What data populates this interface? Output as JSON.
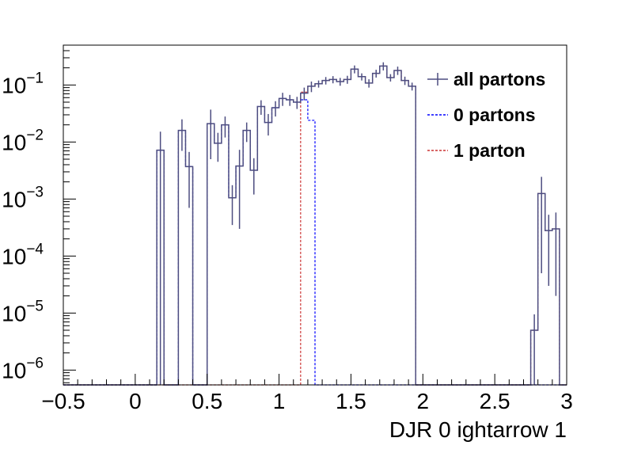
{
  "chart_data": {
    "type": "histogram",
    "xlabel": "DJR 0 ightarrow 1",
    "ylabel": "",
    "xlim": [
      -0.5,
      3.0
    ],
    "ylim": [
      5.5e-07,
      0.5
    ],
    "yscale": "log",
    "grid": false,
    "legend_position": "top-right",
    "x_ticks": [
      {
        "value": -0.5,
        "label": "−0.5"
      },
      {
        "value": 0,
        "label": "0"
      },
      {
        "value": 0.5,
        "label": "0.5"
      },
      {
        "value": 1,
        "label": "1"
      },
      {
        "value": 1.5,
        "label": "1.5"
      },
      {
        "value": 2,
        "label": "2"
      },
      {
        "value": 2.5,
        "label": "2.5"
      },
      {
        "value": 3,
        "label": "3"
      }
    ],
    "y_ticks": [
      {
        "value": 1e-06,
        "base": "10",
        "exp": "−6"
      },
      {
        "value": 1e-05,
        "base": "10",
        "exp": "−5"
      },
      {
        "value": 0.0001,
        "base": "10",
        "exp": "−4"
      },
      {
        "value": 0.001,
        "base": "10",
        "exp": "−3"
      },
      {
        "value": 0.01,
        "base": "10",
        "exp": "−2"
      },
      {
        "value": 0.1,
        "base": "10",
        "exp": "−1"
      }
    ],
    "bin_width": 0.05,
    "series": [
      {
        "name": "all partons",
        "color": "#4d4d80",
        "style": "solid",
        "bins": [
          {
            "x": 0.15,
            "y": 0.0072,
            "err": 0.008
          },
          {
            "x": 0.3,
            "y": 0.016,
            "err": 0.009
          },
          {
            "x": 0.35,
            "y": 0.0037,
            "err": 0.003
          },
          {
            "x": 0.5,
            "y": 0.021,
            "err": 0.016
          },
          {
            "x": 0.55,
            "y": 0.0095,
            "err": 0.005
          },
          {
            "x": 0.6,
            "y": 0.02,
            "err": 0.008
          },
          {
            "x": 0.65,
            "y": 0.00105,
            "err": 0.0007
          },
          {
            "x": 0.7,
            "y": 0.0038,
            "err": 0.0035
          },
          {
            "x": 0.75,
            "y": 0.016,
            "err": 0.006
          },
          {
            "x": 0.8,
            "y": 0.0032,
            "err": 0.002
          },
          {
            "x": 0.85,
            "y": 0.042,
            "err": 0.012
          },
          {
            "x": 0.9,
            "y": 0.022,
            "err": 0.009
          },
          {
            "x": 0.95,
            "y": 0.04,
            "err": 0.012
          },
          {
            "x": 1.0,
            "y": 0.058,
            "err": 0.015
          },
          {
            "x": 1.05,
            "y": 0.055,
            "err": 0.012
          },
          {
            "x": 1.1,
            "y": 0.05,
            "err": 0.012
          },
          {
            "x": 1.15,
            "y": 0.072,
            "err": 0.018
          },
          {
            "x": 1.2,
            "y": 0.095,
            "err": 0.02
          },
          {
            "x": 1.25,
            "y": 0.105,
            "err": 0.015
          },
          {
            "x": 1.3,
            "y": 0.12,
            "err": 0.018
          },
          {
            "x": 1.35,
            "y": 0.125,
            "err": 0.018
          },
          {
            "x": 1.4,
            "y": 0.115,
            "err": 0.018
          },
          {
            "x": 1.45,
            "y": 0.125,
            "err": 0.02
          },
          {
            "x": 1.5,
            "y": 0.19,
            "err": 0.03
          },
          {
            "x": 1.55,
            "y": 0.14,
            "err": 0.02
          },
          {
            "x": 1.6,
            "y": 0.108,
            "err": 0.018
          },
          {
            "x": 1.65,
            "y": 0.16,
            "err": 0.025
          },
          {
            "x": 1.7,
            "y": 0.215,
            "err": 0.035
          },
          {
            "x": 1.75,
            "y": 0.135,
            "err": 0.02
          },
          {
            "x": 1.8,
            "y": 0.18,
            "err": 0.03
          },
          {
            "x": 1.85,
            "y": 0.12,
            "err": 0.02
          },
          {
            "x": 1.9,
            "y": 0.095,
            "err": 0.015
          },
          {
            "x": 2.75,
            "y": 5e-06,
            "err": 4.5e-06
          },
          {
            "x": 2.8,
            "y": 0.00125,
            "err": 0.0012
          },
          {
            "x": 2.85,
            "y": 0.00028,
            "err": 0.00025
          },
          {
            "x": 2.9,
            "y": 0.0003,
            "err": 0.00028
          }
        ]
      },
      {
        "name": "0 partons",
        "color": "#0000ff",
        "style": "dashed",
        "bins": [
          {
            "x": 0.15,
            "y": 0.0072
          },
          {
            "x": 0.3,
            "y": 0.016
          },
          {
            "x": 0.35,
            "y": 0.0037
          },
          {
            "x": 0.5,
            "y": 0.021
          },
          {
            "x": 0.55,
            "y": 0.0095
          },
          {
            "x": 0.6,
            "y": 0.02
          },
          {
            "x": 0.65,
            "y": 0.00105
          },
          {
            "x": 0.7,
            "y": 0.0038
          },
          {
            "x": 0.75,
            "y": 0.016
          },
          {
            "x": 0.8,
            "y": 0.0032
          },
          {
            "x": 0.85,
            "y": 0.042
          },
          {
            "x": 0.9,
            "y": 0.022
          },
          {
            "x": 0.95,
            "y": 0.04
          },
          {
            "x": 1.0,
            "y": 0.058
          },
          {
            "x": 1.05,
            "y": 0.055
          },
          {
            "x": 1.1,
            "y": 0.05
          },
          {
            "x": 1.15,
            "y": 0.055
          },
          {
            "x": 1.2,
            "y": 0.024
          }
        ]
      },
      {
        "name": "1 parton",
        "color": "#cc3333",
        "style": "dashed",
        "bins": [
          {
            "x": 1.15,
            "y": 0.075
          },
          {
            "x": 1.2,
            "y": 0.095
          },
          {
            "x": 1.25,
            "y": 0.105
          },
          {
            "x": 1.3,
            "y": 0.12
          },
          {
            "x": 1.35,
            "y": 0.125
          },
          {
            "x": 1.4,
            "y": 0.115
          },
          {
            "x": 1.45,
            "y": 0.125
          },
          {
            "x": 1.5,
            "y": 0.19
          },
          {
            "x": 1.55,
            "y": 0.14
          },
          {
            "x": 1.6,
            "y": 0.108
          },
          {
            "x": 1.65,
            "y": 0.16
          },
          {
            "x": 1.7,
            "y": 0.215
          },
          {
            "x": 1.75,
            "y": 0.135
          },
          {
            "x": 1.8,
            "y": 0.18
          },
          {
            "x": 1.85,
            "y": 0.12
          },
          {
            "x": 1.9,
            "y": 0.095
          },
          {
            "x": 2.75,
            "y": 5e-06
          },
          {
            "x": 2.8,
            "y": 0.00125
          },
          {
            "x": 2.85,
            "y": 0.00028
          },
          {
            "x": 2.9,
            "y": 0.0003
          }
        ]
      }
    ]
  }
}
